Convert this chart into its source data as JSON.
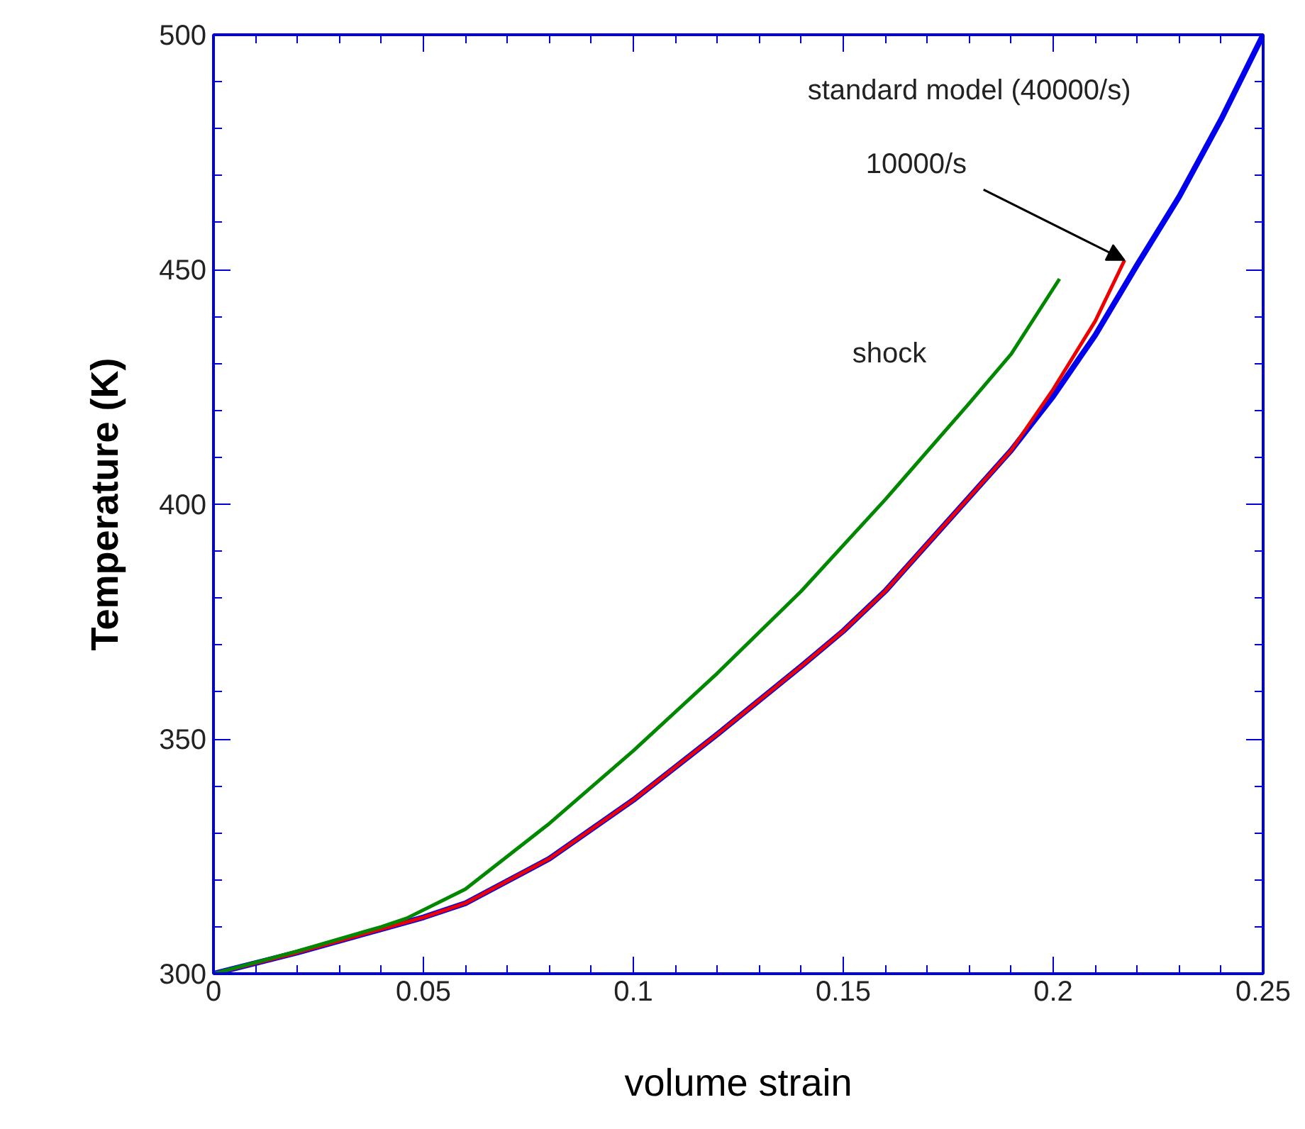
{
  "chart_data": {
    "type": "line",
    "xlabel": "volume strain",
    "ylabel": "Temperature (K)",
    "xlim": [
      0,
      0.25
    ],
    "ylim": [
      300,
      500
    ],
    "xticks": [
      0,
      0.05,
      0.1,
      0.15,
      0.2,
      0.25
    ],
    "yticks": [
      300,
      350,
      400,
      450,
      500
    ],
    "grid": false,
    "marker": "none",
    "line_style": "solid",
    "series": [
      {
        "color": "#0000ee",
        "x": [
          0,
          0.02,
          0.04,
          0.05,
          0.06,
          0.08,
          0.1,
          0.12,
          0.14,
          0.15,
          0.16,
          0.18,
          0.19,
          0.2,
          0.21,
          0.22,
          0.23,
          0.24,
          0.25
        ],
        "values": [
          300,
          304.5,
          309.5,
          312,
          315,
          324.5,
          337,
          351,
          365.5,
          373,
          381.5,
          401.5,
          411.5,
          423,
          436,
          451,
          465.5,
          482,
          500
        ]
      },
      {
        "color": "#ee0000",
        "x": [
          0,
          0.02,
          0.04,
          0.05,
          0.06,
          0.08,
          0.1,
          0.12,
          0.14,
          0.15,
          0.16,
          0.18,
          0.19,
          0.2,
          0.21,
          0.217
        ],
        "values": [
          300,
          304.5,
          309.5,
          312,
          315,
          324.5,
          337,
          351,
          365.5,
          373,
          381.5,
          401.5,
          411.5,
          424.5,
          439,
          452
        ]
      },
      {
        "color": "#008800",
        "x": [
          0,
          0.02,
          0.04,
          0.046,
          0.06,
          0.08,
          0.1,
          0.12,
          0.14,
          0.16,
          0.18,
          0.19,
          0.2015
        ],
        "values": [
          300,
          304.8,
          310,
          311.8,
          318,
          332,
          347.5,
          364,
          381.5,
          401,
          421.5,
          432,
          448
        ]
      }
    ],
    "annotations": [
      "standard model (40000/s)",
      {
        "text": "10000/s",
        "x": 0.217,
        "y": 452
      },
      "shock"
    ]
  }
}
